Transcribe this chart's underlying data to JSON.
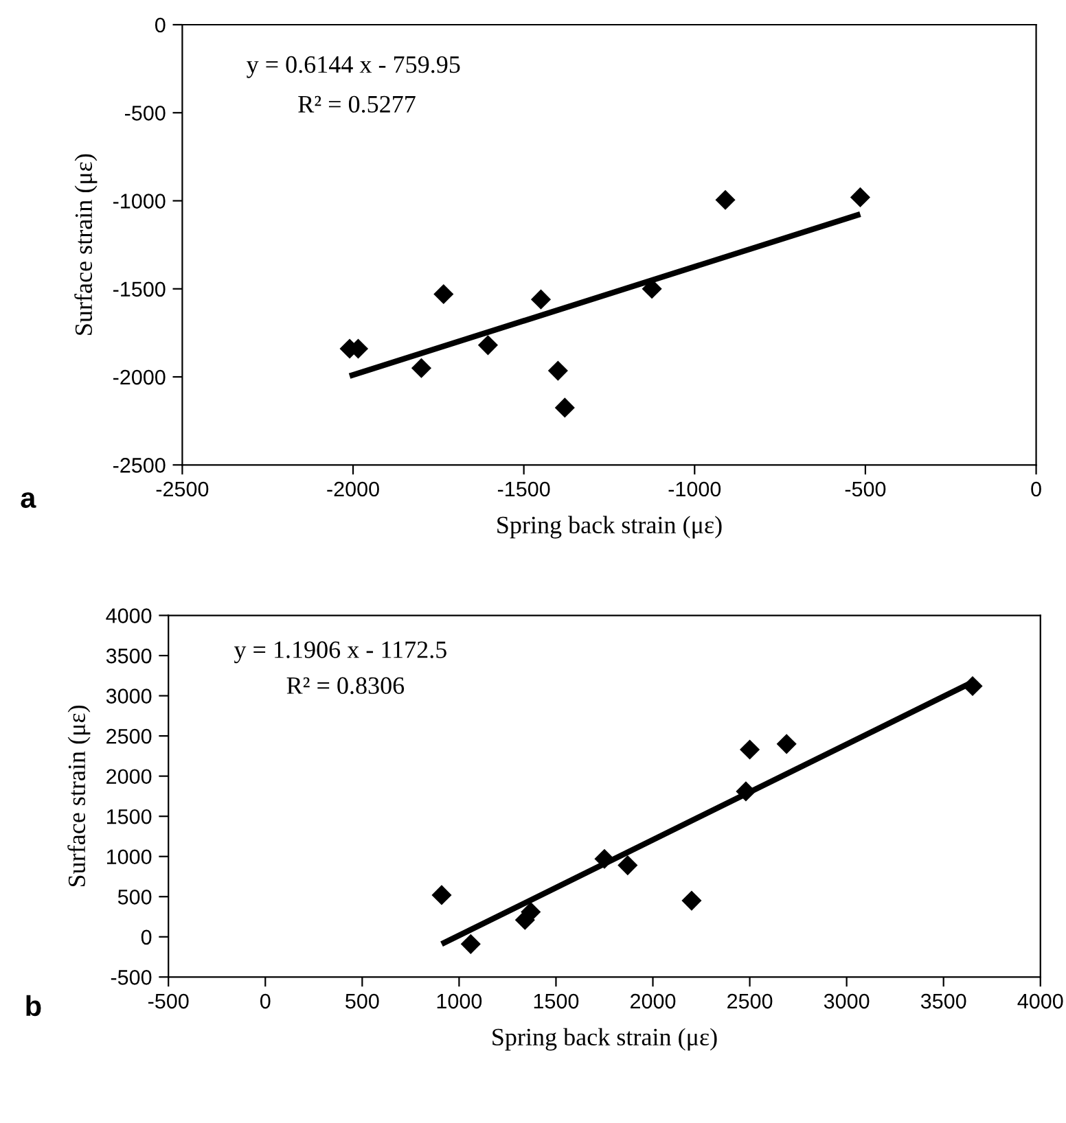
{
  "chart_data": [
    {
      "type": "scatter",
      "xlabel": "Spring back strain (με)",
      "ylabel": "Surface strain (με)",
      "xlim": [
        -2500,
        0
      ],
      "ylim": [
        -2500,
        0
      ],
      "xticks": [
        -2500,
        -2000,
        -1500,
        -1000,
        -500,
        0
      ],
      "yticks": [
        -2500,
        -2000,
        -1500,
        -1000,
        -500,
        0
      ],
      "series": [
        {
          "marker": "diamond",
          "color": "#000000",
          "x": [
            -2010,
            -1985,
            -1800,
            -1735,
            -1605,
            -1450,
            -1400,
            -1380,
            -1125,
            -910,
            -515
          ],
          "values": [
            -1840,
            -1840,
            -1950,
            -1530,
            -1820,
            -1560,
            -1965,
            -2175,
            -1500,
            -995,
            -980
          ]
        },
        {
          "type": "line",
          "color": "#000000",
          "x": [
            -2010,
            -515
          ],
          "values": [
            -1995,
            -1076
          ]
        }
      ],
      "annotations": [
        "y = 0.6144 x - 759.95",
        "R² = 0.5277",
        "a"
      ]
    },
    {
      "type": "scatter",
      "xlabel": "Spring back strain (με)",
      "ylabel": "Surface strain (με)",
      "xlim": [
        -500,
        4000
      ],
      "ylim": [
        -500,
        4000
      ],
      "xticks": [
        -500,
        0,
        500,
        1000,
        1500,
        2000,
        2500,
        3000,
        3500,
        4000
      ],
      "yticks": [
        -500,
        0,
        500,
        1000,
        1500,
        2000,
        2500,
        3000,
        3500,
        4000
      ],
      "series": [
        {
          "marker": "diamond",
          "color": "#000000",
          "x": [
            910,
            1060,
            1340,
            1370,
            1750,
            1870,
            2200,
            2480,
            2500,
            2690,
            3650
          ],
          "values": [
            520,
            -90,
            210,
            310,
            970,
            890,
            450,
            1810,
            2330,
            2400,
            3120
          ]
        },
        {
          "type": "line",
          "color": "#000000",
          "x": [
            910,
            3650
          ],
          "values": [
            -90,
            3170
          ]
        }
      ],
      "annotations": [
        "y = 1.1906 x - 1172.5",
        "R² = 0.8306",
        "b"
      ]
    }
  ]
}
